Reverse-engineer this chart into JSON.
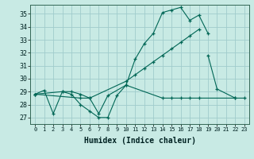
{
  "xlabel": "Humidex (Indice chaleur)",
  "background_color": "#c8eae4",
  "grid_color": "#a0cccc",
  "line_color": "#006655",
  "xlim": [
    -0.5,
    23.5
  ],
  "ylim": [
    26.5,
    35.7
  ],
  "yticks": [
    27,
    28,
    29,
    30,
    31,
    32,
    33,
    34,
    35
  ],
  "xticks": [
    0,
    1,
    2,
    3,
    4,
    5,
    6,
    7,
    8,
    9,
    10,
    11,
    12,
    13,
    14,
    15,
    16,
    17,
    18,
    19,
    20,
    21,
    22,
    23
  ],
  "curve1_x": [
    0,
    1,
    2,
    3,
    4,
    5,
    6,
    7,
    8,
    9,
    10,
    11,
    12,
    13,
    14,
    15,
    16,
    17,
    18,
    19
  ],
  "curve1_y": [
    28.8,
    29.1,
    27.3,
    29.0,
    28.8,
    28.0,
    27.5,
    27.0,
    27.0,
    28.7,
    29.5,
    31.5,
    32.7,
    33.5,
    35.1,
    35.3,
    35.5,
    34.5,
    34.9,
    33.5
  ],
  "curve2_x": [
    0,
    3,
    4,
    5,
    6,
    10,
    11,
    12,
    13,
    14,
    15,
    16,
    17,
    18
  ],
  "curve2_y": [
    28.8,
    29.0,
    29.0,
    28.8,
    28.5,
    29.8,
    30.3,
    30.8,
    31.3,
    31.8,
    32.3,
    32.8,
    33.3,
    33.8
  ],
  "curve3_x": [
    0,
    5,
    6,
    7,
    8,
    10,
    14,
    15,
    16,
    17,
    18,
    22
  ],
  "curve3_y": [
    28.8,
    28.5,
    28.5,
    27.3,
    28.7,
    29.5,
    28.5,
    28.5,
    28.5,
    28.5,
    28.5,
    28.5
  ],
  "curve4_x": [
    19,
    20,
    22,
    23
  ],
  "curve4_y": [
    31.8,
    29.2,
    28.5,
    28.5
  ]
}
